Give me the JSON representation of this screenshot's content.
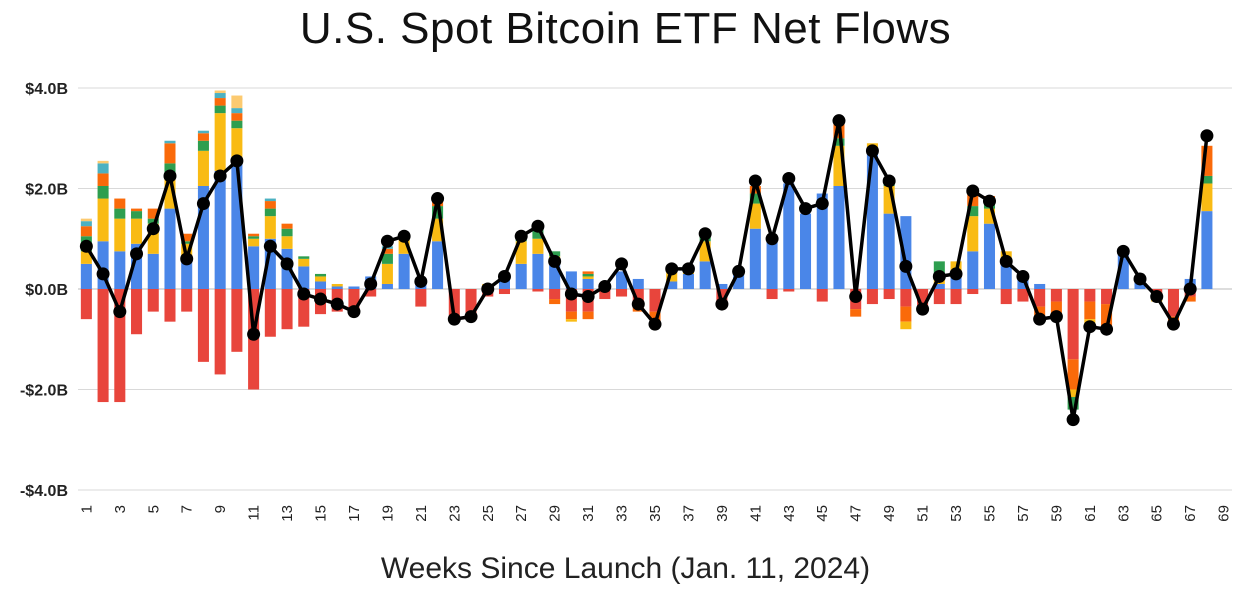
{
  "chart_data": {
    "type": "bar",
    "title": "U.S. Spot Bitcoin ETF Net Flows",
    "xlabel": "Weeks Since Launch (Jan. 11, 2024)",
    "ylabel": "",
    "ylim": [
      -4.0,
      4.0
    ],
    "yticks": [
      {
        "value": 4,
        "label": "$4.0B"
      },
      {
        "value": 2,
        "label": "$2.0B"
      },
      {
        "value": 0,
        "label": "$0.0B"
      },
      {
        "value": -2,
        "label": "-$2.0B"
      },
      {
        "value": -4,
        "label": "-$4.0B"
      }
    ],
    "grid": true,
    "legend": "none",
    "x_tick_every": 2,
    "colors": {
      "blue": "#4a86e8",
      "red": "#e8453c",
      "yellow": "#f9bb14",
      "green": "#2e9e4f",
      "orange": "#fa6a0a",
      "teal": "#4cb1c1",
      "lightorange": "#fcca70",
      "net_line": "#000000"
    },
    "stack_order": [
      "blue",
      "yellow",
      "green",
      "orange",
      "teal",
      "lightorange"
    ],
    "categories": [
      1,
      2,
      3,
      4,
      5,
      6,
      7,
      8,
      9,
      10,
      11,
      12,
      13,
      14,
      15,
      16,
      17,
      18,
      19,
      20,
      21,
      22,
      23,
      24,
      25,
      26,
      27,
      28,
      29,
      30,
      31,
      32,
      33,
      34,
      35,
      36,
      37,
      38,
      39,
      40,
      41,
      42,
      43,
      44,
      45,
      46,
      47,
      48,
      49,
      50,
      51,
      52,
      53,
      54,
      55,
      56,
      57,
      58,
      59,
      60,
      61,
      62,
      63,
      64,
      65,
      66,
      67,
      68,
      69
    ],
    "weeks": [
      {
        "pos": [
          0.5,
          0.25,
          0.3,
          0.2,
          0.1,
          0.05
        ],
        "neg": [
          -0.6
        ]
      },
      {
        "pos": [
          0.95,
          0.85,
          0.25,
          0.25,
          0.2,
          0.05
        ],
        "neg": [
          -2.25
        ]
      },
      {
        "pos": [
          0.75,
          0.65,
          0.2,
          0.2
        ],
        "neg": [
          -2.25
        ]
      },
      {
        "pos": [
          0.9,
          0.5,
          0.15,
          0.05
        ],
        "neg": [
          -0.9
        ]
      },
      {
        "pos": [
          0.7,
          0.6,
          0.1,
          0.2
        ],
        "neg": [
          -0.45
        ]
      },
      {
        "pos": [
          1.6,
          0.6,
          0.3,
          0.4,
          0.05
        ],
        "neg": [
          -0.65
        ]
      },
      {
        "pos": [
          0.6,
          0.3,
          0.05,
          0.15
        ],
        "neg": [
          -0.45
        ]
      },
      {
        "pos": [
          2.05,
          0.7,
          0.2,
          0.15,
          0.05
        ],
        "neg": [
          -1.45
        ]
      },
      {
        "pos": [
          2.35,
          1.15,
          0.15,
          0.15,
          0.1,
          0.05
        ],
        "neg": [
          -1.7
        ]
      },
      {
        "pos": [
          2.6,
          0.6,
          0.15,
          0.15,
          0.1,
          0.25
        ],
        "neg": [
          -1.25
        ]
      },
      {
        "pos": [
          0.85,
          0.15,
          0.05,
          0.05
        ],
        "neg": [
          -2.0
        ]
      },
      {
        "pos": [
          1.0,
          0.45,
          0.15,
          0.15,
          0.05
        ],
        "neg": [
          -0.95
        ]
      },
      {
        "pos": [
          0.8,
          0.25,
          0.15,
          0.1
        ],
        "neg": [
          -0.8
        ]
      },
      {
        "pos": [
          0.45,
          0.15,
          0.05
        ],
        "neg": [
          -0.75
        ]
      },
      {
        "pos": [
          0.15,
          0.1,
          0.05
        ],
        "neg": [
          -0.5
        ]
      },
      {
        "pos": [
          0.05,
          0.05
        ],
        "neg": [
          -0.45
        ]
      },
      {
        "pos": [
          0.05
        ],
        "neg": [
          -0.5
        ]
      },
      {
        "pos": [
          0.25
        ],
        "neg": [
          -0.15
        ]
      },
      {
        "pos": [
          0.1,
          0.4,
          0.2,
          0.1,
          0.05
        ],
        "neg": []
      },
      {
        "pos": [
          0.7,
          0.3
        ],
        "neg": []
      },
      {
        "pos": [
          0.2
        ],
        "neg": [
          -0.35
        ]
      },
      {
        "pos": [
          0.95,
          0.45,
          0.25,
          0.15
        ],
        "neg": []
      },
      {
        "pos": [],
        "neg": [
          -0.6
        ]
      },
      {
        "pos": [],
        "neg": [
          -0.55
        ]
      },
      {
        "pos": [
          0.05,
          0.05
        ],
        "neg": [
          -0.15
        ]
      },
      {
        "pos": [
          0.2,
          0.05
        ],
        "neg": [
          -0.1
        ]
      },
      {
        "pos": [
          0.5,
          0.45,
          0.1
        ],
        "neg": []
      },
      {
        "pos": [
          0.7,
          0.3,
          0.2,
          0.05
        ],
        "neg": [
          -0.05
        ]
      },
      {
        "pos": [
          0.5,
          0.15,
          0.1
        ],
        "neg": [
          -0.2,
          -0.1
        ]
      },
      {
        "pos": [
          0.35
        ],
        "neg": [
          -0.45,
          -0.15,
          -0.05
        ]
      },
      {
        "pos": [
          0.2,
          0.05,
          0.05,
          0.05
        ],
        "neg": [
          -0.45,
          -0.15
        ]
      },
      {
        "pos": [
          0.05
        ],
        "neg": [
          -0.2
        ]
      },
      {
        "pos": [
          0.35
        ],
        "neg": [
          -0.15
        ]
      },
      {
        "pos": [
          0.2
        ],
        "neg": [
          -0.35,
          -0.1
        ]
      },
      {
        "pos": [],
        "neg": [
          -0.45,
          -0.25
        ]
      },
      {
        "pos": [
          0.15,
          0.2
        ],
        "neg": []
      },
      {
        "pos": [
          0.3,
          0.15
        ],
        "neg": []
      },
      {
        "pos": [
          0.55,
          0.4,
          0.15
        ],
        "neg": []
      },
      {
        "pos": [
          0.1
        ],
        "neg": [
          -0.3
        ]
      },
      {
        "pos": [
          0.3
        ],
        "neg": []
      },
      {
        "pos": [
          1.2,
          0.5,
          0.2,
          0.15
        ],
        "neg": []
      },
      {
        "pos": [
          1.0
        ],
        "neg": [
          -0.2
        ]
      },
      {
        "pos": [
          2.1
        ],
        "neg": [
          -0.05
        ]
      },
      {
        "pos": [
          1.5
        ],
        "neg": []
      },
      {
        "pos": [
          1.9
        ],
        "neg": [
          -0.25
        ]
      },
      {
        "pos": [
          2.05,
          0.8,
          0.15,
          0.35
        ],
        "neg": []
      },
      {
        "pos": [],
        "neg": [
          -0.4,
          -0.15
        ]
      },
      {
        "pos": [
          2.8,
          0.1
        ],
        "neg": [
          -0.3
        ]
      },
      {
        "pos": [
          1.5,
          0.55,
          0.1
        ],
        "neg": [
          -0.2
        ]
      },
      {
        "pos": [
          1.45
        ],
        "neg": [
          -0.35,
          -0.3,
          -0.15
        ]
      },
      {
        "pos": [],
        "neg": [
          -0.35
        ]
      },
      {
        "pos": [
          0.1,
          0.2,
          0.25
        ],
        "neg": [
          -0.3
        ]
      },
      {
        "pos": [
          0.35,
          0.2
        ],
        "neg": [
          -0.3
        ]
      },
      {
        "pos": [
          0.75,
          0.7,
          0.2,
          0.25
        ],
        "neg": [
          -0.1
        ]
      },
      {
        "pos": [
          1.3,
          0.3,
          0.15,
          0.1
        ],
        "neg": []
      },
      {
        "pos": [
          0.55,
          0.2
        ],
        "neg": [
          -0.3
        ]
      },
      {
        "pos": [
          0.3
        ],
        "neg": [
          -0.25
        ]
      },
      {
        "pos": [
          0.1
        ],
        "neg": [
          -0.35,
          -0.2
        ]
      },
      {
        "pos": [],
        "neg": [
          -0.25,
          -0.35
        ]
      },
      {
        "pos": [],
        "neg": [
          -1.4,
          -0.6,
          -0.15,
          -0.25
        ]
      },
      {
        "pos": [],
        "neg": [
          -0.25,
          -0.35,
          -0.1
        ]
      },
      {
        "pos": [],
        "neg": [
          -0.3,
          -0.45,
          -0.1
        ]
      },
      {
        "pos": [
          0.7,
          0.05
        ],
        "neg": []
      },
      {
        "pos": [
          0.2
        ],
        "neg": []
      },
      {
        "pos": [],
        "neg": [
          -0.1,
          -0.1,
          -0.05
        ]
      },
      {
        "pos": [],
        "neg": [
          -0.55,
          -0.1
        ]
      },
      {
        "pos": [
          0.2
        ],
        "neg": [
          -0.15,
          -0.1
        ]
      },
      {
        "pos": [
          1.55,
          0.55,
          0.15,
          0.6
        ],
        "neg": []
      },
      null
    ],
    "net_values": [
      0.85,
      0.3,
      -0.45,
      0.7,
      1.2,
      2.25,
      0.6,
      1.7,
      2.25,
      2.55,
      -0.9,
      0.85,
      0.5,
      -0.1,
      -0.2,
      -0.3,
      -0.45,
      0.1,
      0.95,
      1.05,
      0.15,
      1.8,
      -0.6,
      -0.55,
      0.0,
      0.25,
      1.05,
      1.25,
      0.55,
      -0.1,
      -0.15,
      0.05,
      0.5,
      -0.3,
      -0.7,
      0.4,
      0.4,
      1.1,
      -0.3,
      0.35,
      2.15,
      1.0,
      2.2,
      1.6,
      1.7,
      3.35,
      -0.15,
      2.75,
      2.15,
      0.45,
      -0.4,
      0.25,
      0.3,
      1.95,
      1.75,
      0.55,
      0.25,
      -0.6,
      -0.55,
      -2.6,
      -0.75,
      -0.8,
      0.75,
      0.2,
      -0.15,
      -0.7,
      0.0,
      3.05,
      null
    ]
  }
}
